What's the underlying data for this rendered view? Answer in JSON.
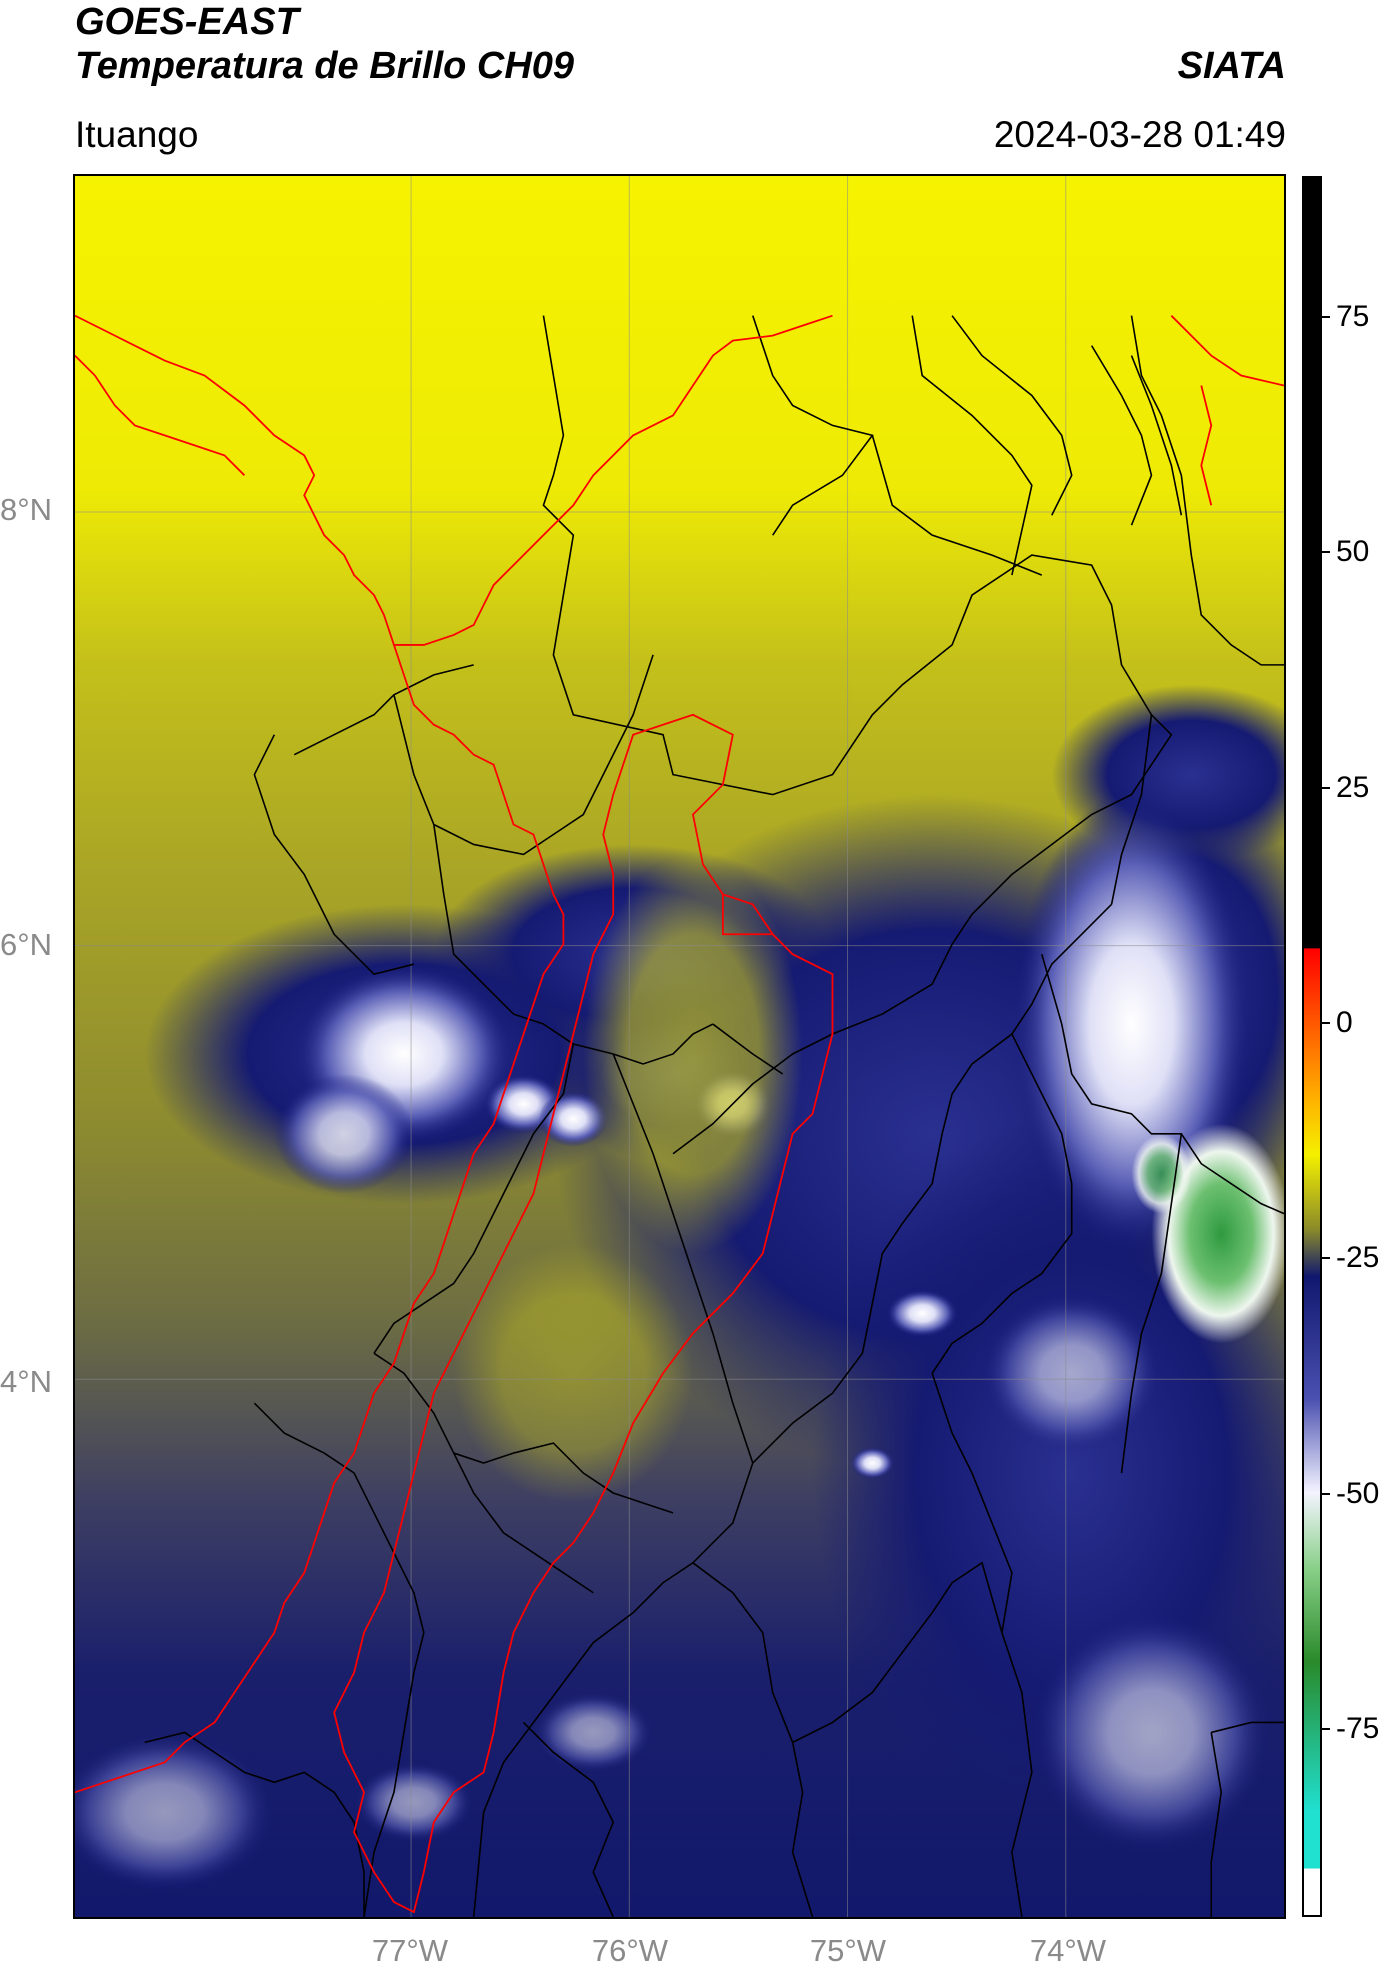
{
  "header": {
    "satellite": "GOES-EAST",
    "product": "Temperatura de Brillo CH09",
    "org": "SIATA",
    "region": "Ituango",
    "datetime": "2024-03-28 01:49"
  },
  "map": {
    "lat_labels": [
      "8°N",
      "6°N",
      "4°N"
    ],
    "lon_labels": [
      "77°W",
      "76°W",
      "75°W",
      "74°W"
    ],
    "lat_values": [
      8,
      6,
      4
    ],
    "lon_values": [
      -77,
      -76,
      -75,
      -74
    ],
    "grid": true,
    "colors": {
      "warm": "#f4f000",
      "olive": "#8f8f2a",
      "cold_navy": "#10186e",
      "very_cold": "#f2f2ff",
      "coldest": "#3aa44a",
      "river_outline": "#ff0000",
      "borders": "#000000"
    }
  },
  "colorbar": {
    "ticks": [
      "75",
      "50",
      "25",
      "0",
      "-25",
      "-50",
      "-75"
    ],
    "tick_values": [
      75,
      50,
      25,
      0,
      -25,
      -50,
      -75
    ],
    "range": [
      -95,
      90
    ],
    "stops": [
      {
        "value": 90,
        "color": "#000000"
      },
      {
        "value": 8,
        "color": "#000000"
      },
      {
        "value": 7.9,
        "color": "#ff0000"
      },
      {
        "value": -8,
        "color": "#ffb000"
      },
      {
        "value": -14,
        "color": "#f4f000"
      },
      {
        "value": -22,
        "color": "#8a8a2a"
      },
      {
        "value": -27,
        "color": "#10186e"
      },
      {
        "value": -40,
        "color": "#4a50b0"
      },
      {
        "value": -50,
        "color": "#f4f4ff"
      },
      {
        "value": -58,
        "color": "#8ad08a"
      },
      {
        "value": -68,
        "color": "#2a8a2a"
      },
      {
        "value": -84,
        "color": "#20e0d0"
      },
      {
        "value": -90,
        "color": "#20e0d0"
      },
      {
        "value": -90.1,
        "color": "#ffffff"
      },
      {
        "value": -95,
        "color": "#ffffff"
      }
    ]
  }
}
